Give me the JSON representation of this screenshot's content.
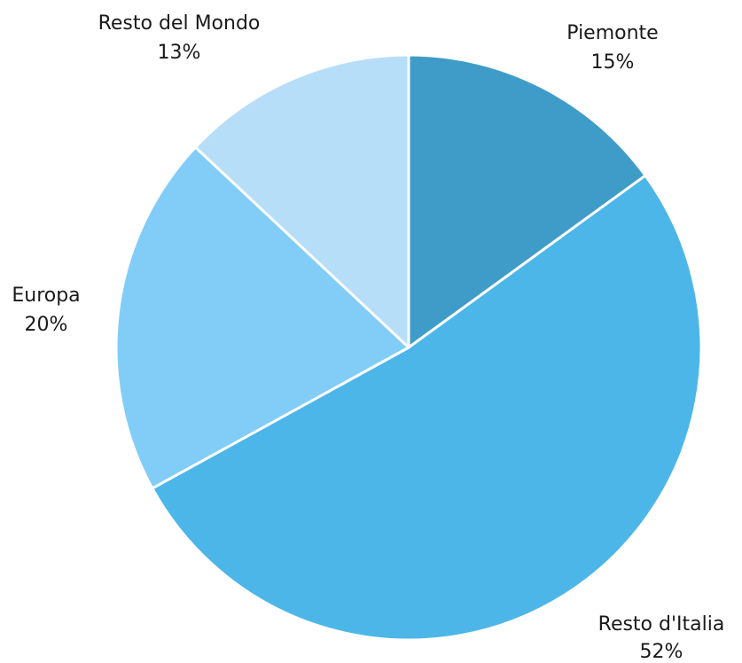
{
  "chart_data": {
    "type": "pie",
    "start_angle_deg": 0,
    "direction": "clockwise",
    "slices": [
      {
        "label": "Piemonte",
        "value": 15,
        "value_text": "15%",
        "color": "#3f9cc9"
      },
      {
        "label": "Resto d'Italia",
        "value": 52,
        "value_text": "52%",
        "color": "#4cb6e9"
      },
      {
        "label": "Europa",
        "value": 20,
        "value_text": "20%",
        "color": "#81cdf7"
      },
      {
        "label": "Resto del Mondo",
        "value": 13,
        "value_text": "13%",
        "color": "#b7def8"
      }
    ]
  }
}
